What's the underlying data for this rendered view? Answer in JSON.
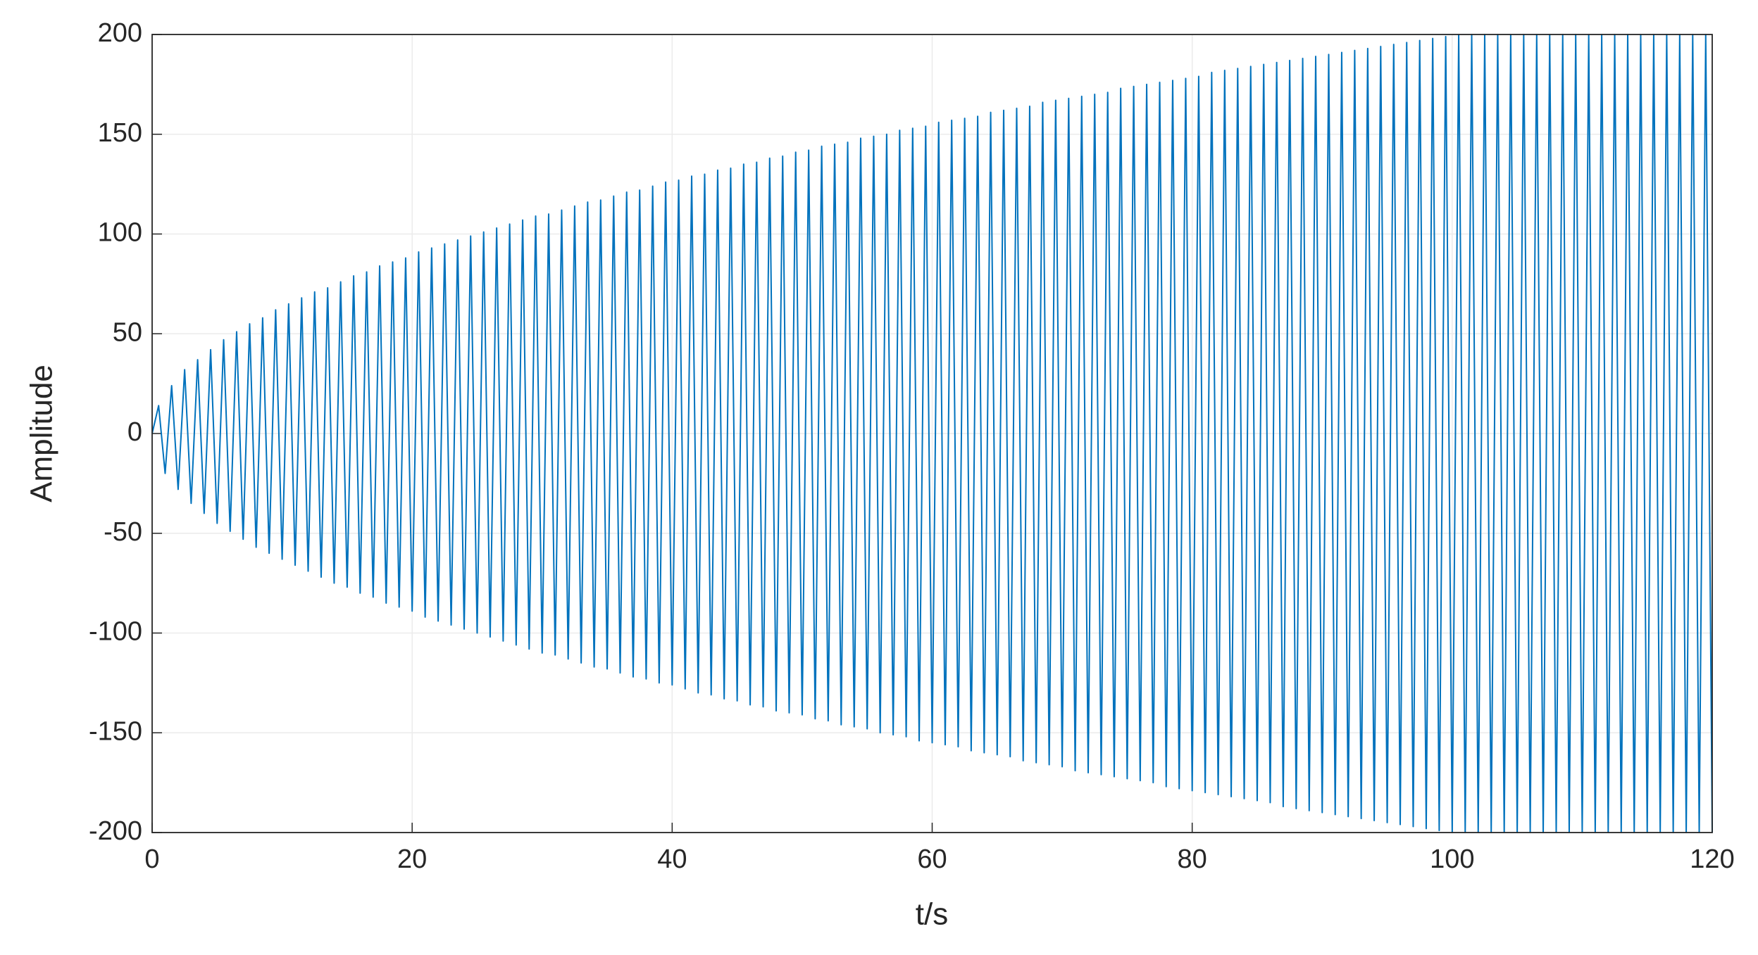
{
  "chart_data": {
    "type": "line",
    "x_label": "t/s",
    "y_label": "Amplitude",
    "color": "#0072bd",
    "grid": true,
    "xlim": [
      0,
      120
    ],
    "xticks": [
      0,
      20,
      40,
      60,
      80,
      100,
      120
    ],
    "ylim": [
      -200,
      200
    ],
    "yticks": [
      -200,
      -150,
      -100,
      -50,
      0,
      50,
      100,
      150,
      200
    ],
    "x": [
      0,
      0.5,
      1,
      1.5,
      2,
      2.5,
      3,
      3.5,
      4,
      4.5,
      5,
      5.5,
      6,
      6.5,
      7,
      7.5,
      8,
      8.5,
      9,
      9.5,
      10,
      10.5,
      11,
      11.5,
      12,
      12.5,
      13,
      13.5,
      14,
      14.5,
      15,
      15.5,
      16,
      16.5,
      17,
      17.5,
      18,
      18.5,
      19,
      19.5,
      20,
      20.5,
      21,
      21.5,
      22,
      22.5,
      23,
      23.5,
      24,
      24.5,
      25,
      25.5,
      26,
      26.5,
      27,
      27.5,
      28,
      28.5,
      29,
      29.5,
      30,
      30.5,
      31,
      31.5,
      32,
      32.5,
      33,
      33.5,
      34,
      34.5,
      35,
      35.5,
      36,
      36.5,
      37,
      37.5,
      38,
      38.5,
      39,
      39.5,
      40,
      40.5,
      41,
      41.5,
      42,
      42.5,
      43,
      43.5,
      44,
      44.5,
      45,
      45.5,
      46,
      46.5,
      47,
      47.5,
      48,
      48.5,
      49,
      49.5,
      50,
      50.5,
      51,
      51.5,
      52,
      52.5,
      53,
      53.5,
      54,
      54.5,
      55,
      55.5,
      56,
      56.5,
      57,
      57.5,
      58,
      58.5,
      59,
      59.5,
      60,
      60.5,
      61,
      61.5,
      62,
      62.5,
      63,
      63.5,
      64,
      64.5,
      65,
      65.5,
      66,
      66.5,
      67,
      67.5,
      68,
      68.5,
      69,
      69.5,
      70,
      70.5,
      71,
      71.5,
      72,
      72.5,
      73,
      73.5,
      74,
      74.5,
      75,
      75.5,
      76,
      76.5,
      77,
      77.5,
      78,
      78.5,
      79,
      79.5,
      80,
      80.5,
      81,
      81.5,
      82,
      82.5,
      83,
      83.5,
      84,
      84.5,
      85,
      85.5,
      86,
      86.5,
      87,
      87.5,
      88,
      88.5,
      89,
      89.5,
      90,
      90.5,
      91,
      91.5,
      92,
      92.5,
      93,
      93.5,
      94,
      94.5,
      95,
      95.5,
      96,
      96.5,
      97,
      97.5,
      98,
      98.5,
      99,
      99.5,
      100,
      100.5,
      101,
      101.5,
      102,
      102.5,
      103,
      103.5,
      104,
      104.5,
      105,
      105.5,
      106,
      106.5,
      107,
      107.5,
      108,
      108.5,
      109,
      109.5,
      110,
      110.5,
      111,
      111.5,
      112,
      112.5,
      113,
      113.5,
      114,
      114.5,
      115,
      115.5,
      116,
      116.5,
      117,
      117.5,
      118,
      118.5,
      119,
      119.5,
      120
    ],
    "values": [
      0,
      14,
      -20,
      24,
      -28,
      32,
      -35,
      37,
      -40,
      42,
      -45,
      47,
      -49,
      51,
      -53,
      55,
      -57,
      58,
      -60,
      62,
      -63,
      65,
      -66,
      68,
      -69,
      71,
      -72,
      73,
      -75,
      76,
      -77,
      79,
      -80,
      81,
      -82,
      84,
      -85,
      86,
      -87,
      88,
      -89,
      91,
      -92,
      93,
      -94,
      95,
      -96,
      97,
      -98,
      99,
      -100,
      101,
      -102,
      103,
      -104,
      105,
      -106,
      107,
      -108,
      109,
      -110,
      110,
      -111,
      112,
      -113,
      114,
      -115,
      116,
      -117,
      117,
      -118,
      119,
      -120,
      121,
      -122,
      122,
      -123,
      124,
      -125,
      126,
      -126,
      127,
      -128,
      129,
      -130,
      130,
      -131,
      132,
      -133,
      133,
      -134,
      135,
      -136,
      136,
      -137,
      138,
      -139,
      139,
      -140,
      141,
      -141,
      142,
      -143,
      144,
      -144,
      145,
      -146,
      146,
      -147,
      148,
      -148,
      149,
      -150,
      150,
      -151,
      152,
      -152,
      153,
      -154,
      154,
      -155,
      156,
      -156,
      157,
      -157,
      158,
      -159,
      159,
      -160,
      161,
      -161,
      162,
      -162,
      163,
      -164,
      164,
      -165,
      166,
      -166,
      167,
      -167,
      168,
      -169,
      169,
      -170,
      170,
      -171,
      171,
      -172,
      173,
      -173,
      174,
      -174,
      175,
      -175,
      176,
      -177,
      177,
      -178,
      178,
      -179,
      179,
      -180,
      181,
      -181,
      182,
      -182,
      183,
      -183,
      184,
      -184,
      185,
      -185,
      186,
      -187,
      187,
      -188,
      188,
      -189,
      189,
      -190,
      190,
      -191,
      191,
      -192,
      192,
      -193,
      193,
      -194,
      194,
      -195,
      195,
      -196,
      196,
      -197,
      197,
      -198,
      198,
      -199,
      199,
      -200,
      200,
      -200,
      200,
      -200,
      200,
      -200,
      200,
      -200,
      200,
      -200,
      200,
      -200,
      200,
      -200,
      200,
      -200,
      200,
      -200,
      200,
      -200,
      200,
      -200,
      200,
      -200,
      200,
      -200,
      200,
      -200,
      200,
      -200,
      200,
      -200,
      200,
      -200,
      200,
      -200,
      200,
      -200,
      200,
      -200
    ]
  }
}
